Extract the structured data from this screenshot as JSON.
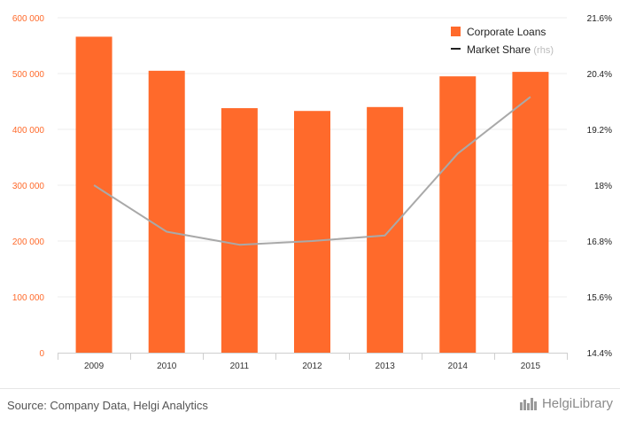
{
  "chart_data": {
    "type": "bar+line",
    "categories": [
      "2009",
      "2010",
      "2011",
      "2012",
      "2013",
      "2014",
      "2015"
    ],
    "series": [
      {
        "name": "Corporate Loans",
        "type": "bar",
        "axis": "left",
        "values": [
          566000,
          505000,
          438000,
          433000,
          440000,
          495000,
          503000
        ]
      },
      {
        "name": "Market Share",
        "suffix": "(rhs)",
        "type": "line",
        "axis": "right",
        "values": [
          18.0,
          17.0,
          16.72,
          16.8,
          16.92,
          18.68,
          19.9
        ]
      }
    ],
    "left_axis": {
      "min": 0,
      "max": 600000,
      "ticks": [
        0,
        100000,
        200000,
        300000,
        400000,
        500000,
        600000
      ],
      "tick_labels": [
        "0",
        "100 000",
        "200 000",
        "300 000",
        "400 000",
        "500 000",
        "600 000"
      ]
    },
    "right_axis": {
      "min": 14.4,
      "max": 21.6,
      "ticks": [
        14.4,
        15.6,
        16.8,
        18,
        19.2,
        20.4,
        21.6
      ],
      "tick_labels": [
        "14.4%",
        "15.6%",
        "16.8%",
        "18%",
        "19.2%",
        "20.4%",
        "21.6%"
      ]
    },
    "legend_position": "top-right",
    "grid": true
  },
  "colors": {
    "bar": "#ff6a2b",
    "line": "#a9a9a9",
    "left_axis_text": "#ff6a2b",
    "right_axis_text": "#222222",
    "grid": "#ececec",
    "legend_line": "#222222"
  },
  "footer": {
    "source": "Source: Company Data, Helgi Analytics",
    "brand": "HelgiLibrary"
  },
  "icons": {
    "brand": "helgi-library-logo-icon"
  }
}
